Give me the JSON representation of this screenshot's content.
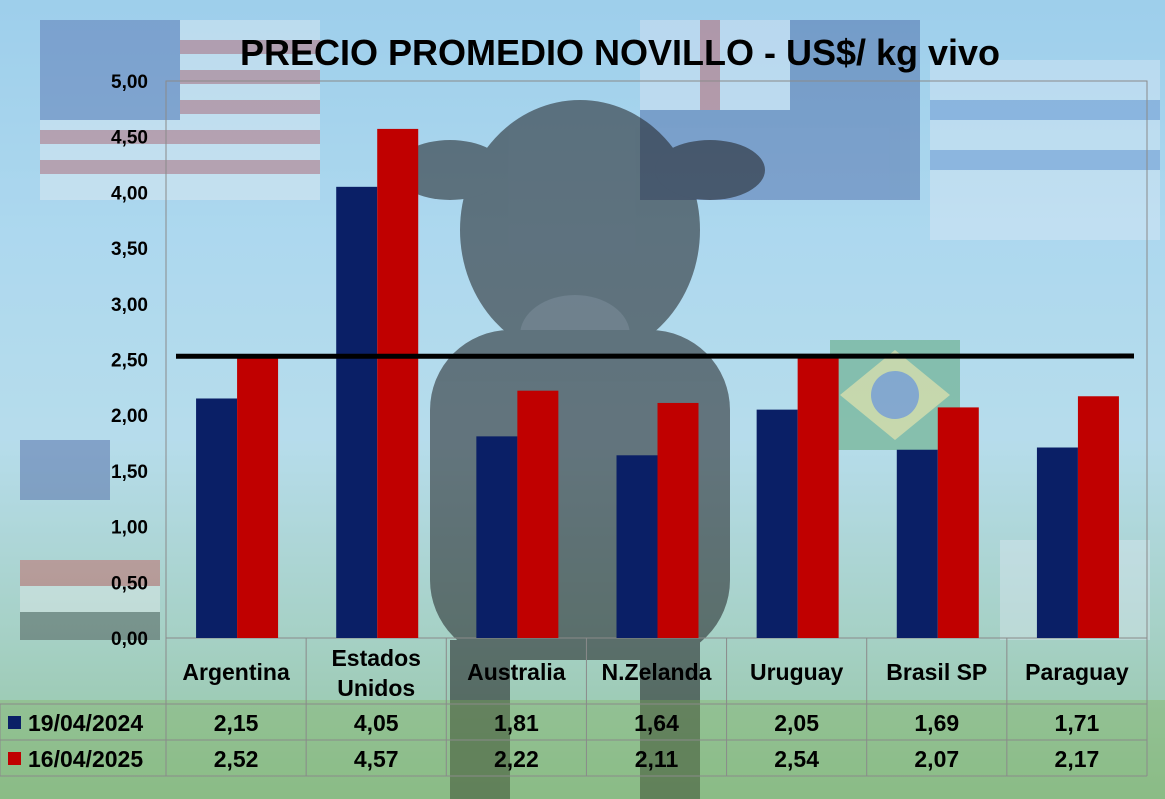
{
  "chart_data": {
    "type": "bar",
    "title": "PRECIO PROMEDIO NOVILLO  - US$/ kg vivo",
    "categories": [
      "Argentina",
      "Estados Unidos",
      "Australia",
      "N.Zelanda",
      "Uruguay",
      "Brasil SP",
      "Paraguay"
    ],
    "category_lines": [
      [
        "Argentina"
      ],
      [
        "Estados",
        "Unidos"
      ],
      [
        "Australia"
      ],
      [
        "N.Zelanda"
      ],
      [
        "Uruguay"
      ],
      [
        "Brasil SP"
      ],
      [
        "Paraguay"
      ]
    ],
    "series": [
      {
        "name": "19/04/2024",
        "color": "#0a1f66",
        "values": [
          2.15,
          4.05,
          1.81,
          1.64,
          2.05,
          1.69,
          1.71
        ],
        "labels": [
          "2,15",
          "4,05",
          "1,81",
          "1,64",
          "2,05",
          "1,69",
          "1,71"
        ]
      },
      {
        "name": "16/04/2025",
        "color": "#c00000",
        "values": [
          2.52,
          4.57,
          2.22,
          2.11,
          2.54,
          2.07,
          2.17
        ],
        "labels": [
          "2,52",
          "4,57",
          "2,22",
          "2,11",
          "2,54",
          "2,07",
          "2,17"
        ]
      }
    ],
    "yticks": [
      "0,00",
      "0,50",
      "1,00",
      "1,50",
      "2,00",
      "2,50",
      "3,00",
      "3,50",
      "4,00",
      "4,50",
      "5,00"
    ],
    "ylim": [
      0,
      5
    ],
    "reference_line": {
      "start_value": 2.52,
      "end_value": 2.54,
      "color": "#000000"
    },
    "xlabel": "",
    "ylabel": "",
    "grid": false,
    "legend": "data table",
    "background": "photo collage: cow in a field with national flags"
  }
}
